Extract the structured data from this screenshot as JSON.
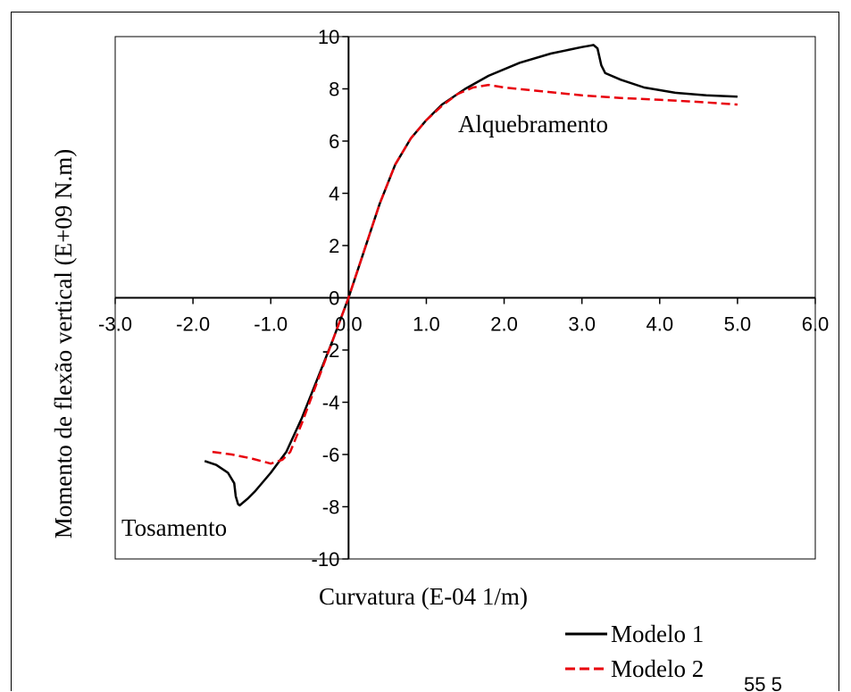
{
  "chart_data": {
    "type": "line",
    "title": "",
    "xlabel": "Curvatura (E-04 1/m)",
    "ylabel": "Momento de flexão vertical (E+09 N.m)",
    "xlim": [
      -3.0,
      6.0
    ],
    "ylim": [
      -10,
      10
    ],
    "x_ticks": [
      -3.0,
      -2.0,
      -1.0,
      0.0,
      1.0,
      2.0,
      3.0,
      4.0,
      5.0,
      6.0
    ],
    "x_tick_labels": [
      "-3.0",
      "-2.0",
      "-1.0",
      "0.0",
      "1.0",
      "2.0",
      "3.0",
      "4.0",
      "5.0",
      "6.0"
    ],
    "y_ticks": [
      -10,
      -8,
      -6,
      -4,
      -2,
      0,
      2,
      4,
      6,
      8,
      10
    ],
    "y_tick_labels": [
      "-10",
      "-8",
      "-6",
      "-4",
      "-2",
      "0",
      "2",
      "4",
      "6",
      "8",
      "10"
    ],
    "grid": false,
    "legend_position": "bottom-right",
    "annotations": [
      {
        "text": "Alquebramento",
        "x": 1.4,
        "y": 6.5
      },
      {
        "text": "Tosamento",
        "x": -2.9,
        "y": -8.9
      }
    ],
    "series": [
      {
        "name": "Modelo 1",
        "color": "#000000",
        "style": "solid",
        "x": [
          -1.85,
          -1.7,
          -1.55,
          -1.47,
          -1.45,
          -1.42,
          -1.4,
          -1.3,
          -1.2,
          -1.0,
          -0.8,
          -0.6,
          -0.4,
          -0.2,
          0.0,
          0.2,
          0.4,
          0.6,
          0.8,
          1.0,
          1.2,
          1.5,
          1.8,
          2.2,
          2.6,
          3.0,
          3.1,
          3.15,
          3.2,
          3.25,
          3.3,
          3.5,
          3.8,
          4.2,
          4.6,
          5.0
        ],
        "y": [
          -6.25,
          -6.4,
          -6.7,
          -7.1,
          -7.6,
          -7.9,
          -7.95,
          -7.7,
          -7.4,
          -6.7,
          -5.9,
          -4.6,
          -3.1,
          -1.6,
          0.0,
          1.8,
          3.6,
          5.1,
          6.1,
          6.8,
          7.4,
          8.0,
          8.5,
          9.0,
          9.35,
          9.6,
          9.65,
          9.68,
          9.55,
          8.9,
          8.6,
          8.35,
          8.05,
          7.85,
          7.75,
          7.7
        ]
      },
      {
        "name": "Modelo 2",
        "color": "#e8000b",
        "style": "dashed",
        "x": [
          -1.75,
          -1.5,
          -1.25,
          -1.0,
          -0.85,
          -0.75,
          -0.6,
          -0.4,
          -0.2,
          0.0,
          0.2,
          0.4,
          0.6,
          0.8,
          1.0,
          1.2,
          1.4,
          1.6,
          1.8,
          2.0,
          2.5,
          3.0,
          3.5,
          4.0,
          4.5,
          5.0
        ],
        "y": [
          -5.9,
          -6.0,
          -6.15,
          -6.35,
          -6.2,
          -5.9,
          -4.8,
          -3.2,
          -1.6,
          0.0,
          1.8,
          3.6,
          5.1,
          6.1,
          6.8,
          7.35,
          7.8,
          8.05,
          8.15,
          8.05,
          7.9,
          7.75,
          7.65,
          7.58,
          7.5,
          7.4
        ]
      }
    ]
  },
  "footer_fragment": "55 5"
}
